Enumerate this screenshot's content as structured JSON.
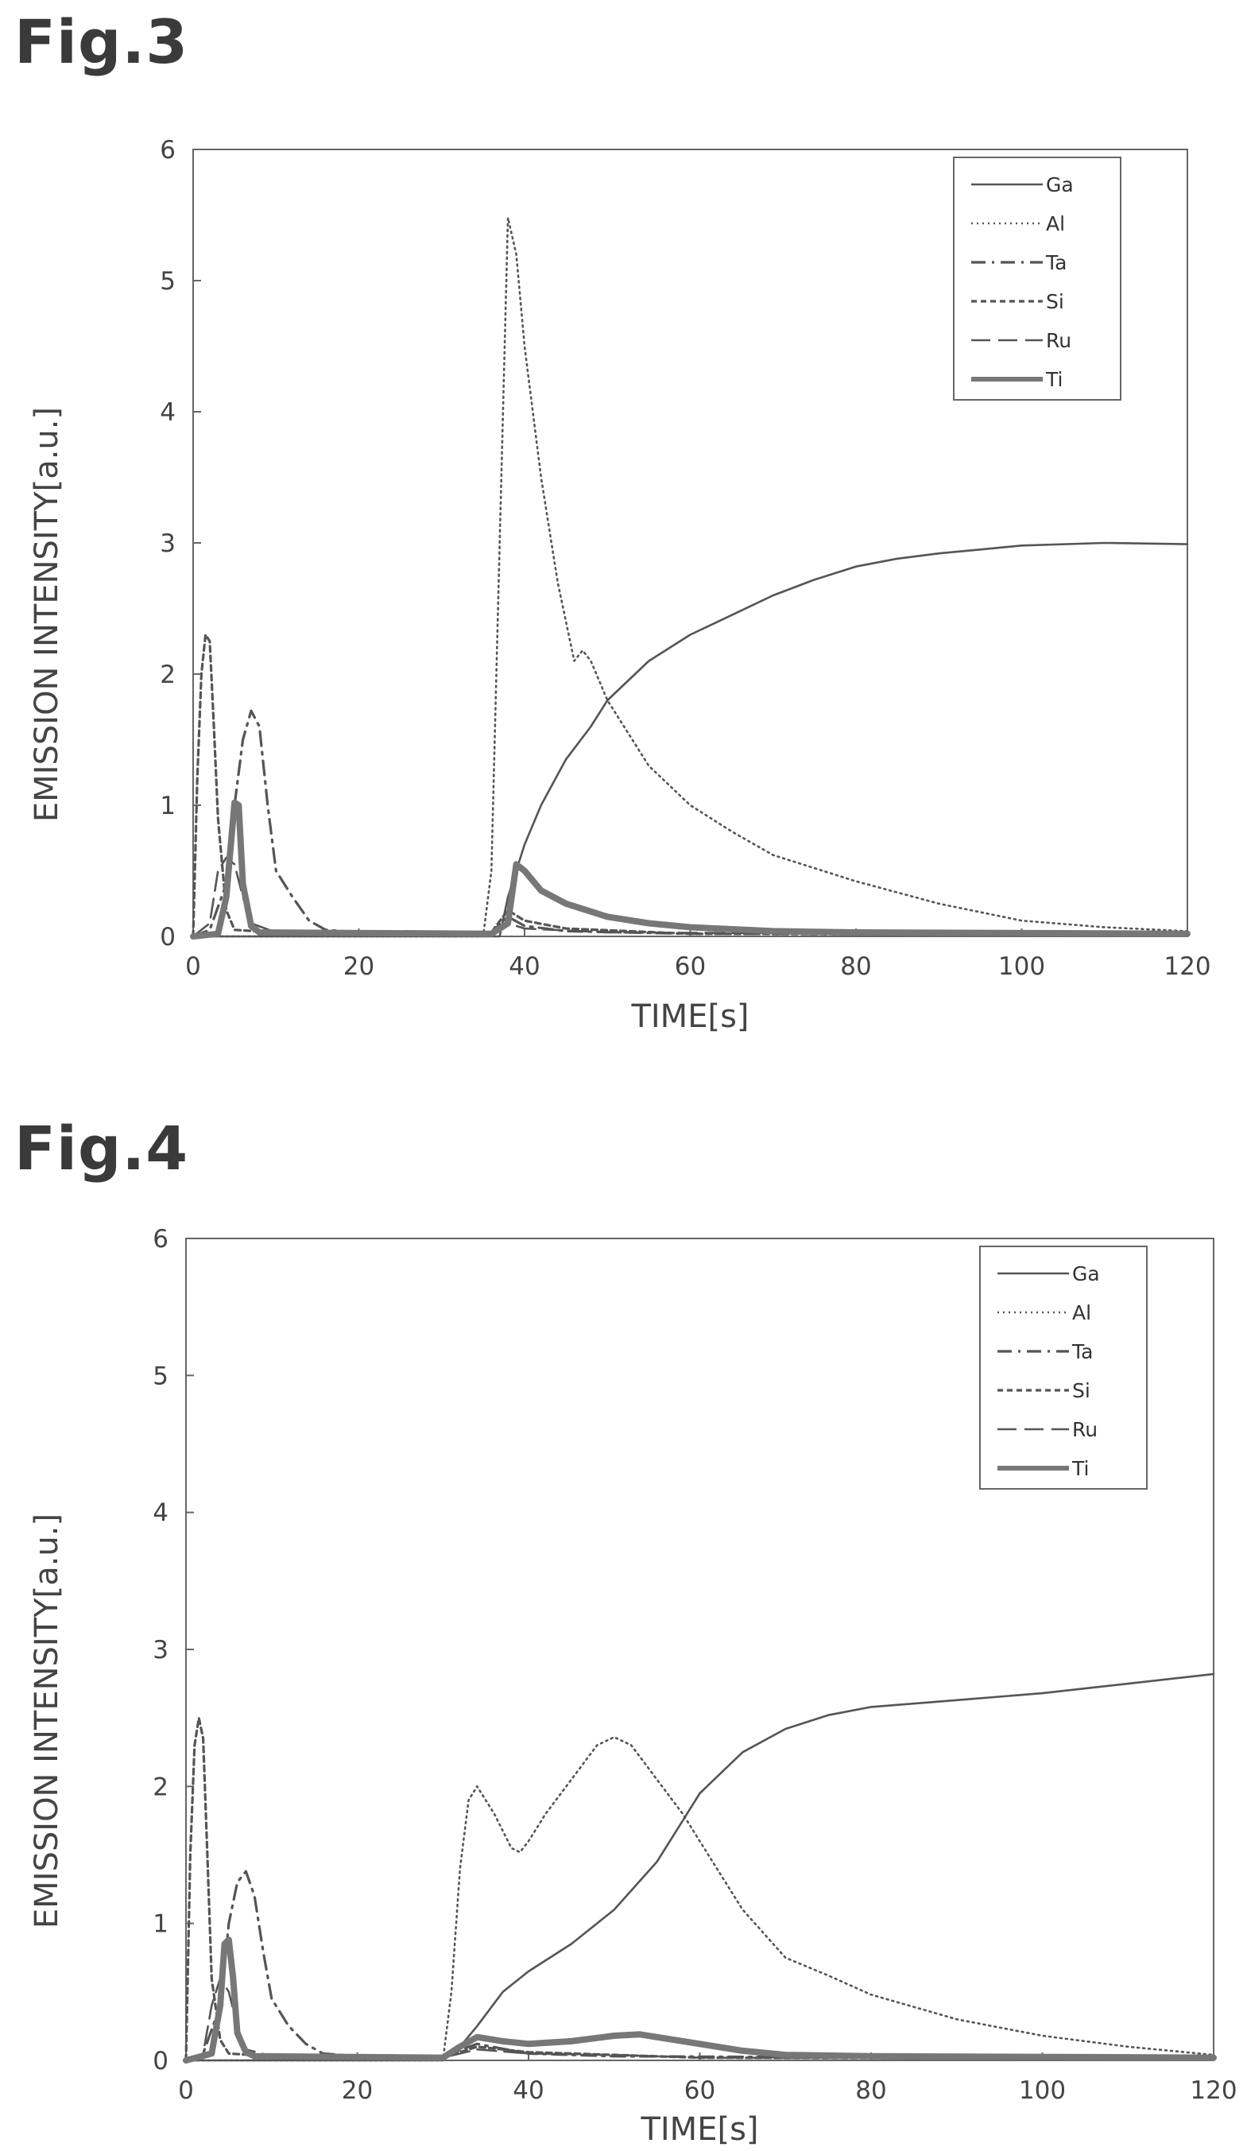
{
  "figures": [
    {
      "label": "Fig.3"
    },
    {
      "label": "Fig.4"
    }
  ],
  "chart_data": [
    {
      "type": "line",
      "title": "",
      "xlabel": "TIME[s]",
      "ylabel": "EMISSION INTENSITY[a.u.]",
      "xlim": [
        0,
        120
      ],
      "ylim": [
        0,
        6
      ],
      "xticks": [
        0,
        20,
        40,
        60,
        80,
        100,
        120
      ],
      "yticks": [
        0,
        1,
        2,
        3,
        4,
        5,
        6
      ],
      "grid": false,
      "legend_position": "top-right",
      "series": [
        {
          "name": "Ga",
          "style": "solid-thin",
          "points": [
            [
              0,
              0
            ],
            [
              37,
              0
            ],
            [
              38,
              0.3
            ],
            [
              40,
              0.7
            ],
            [
              42,
              1.0
            ],
            [
              45,
              1.35
            ],
            [
              48,
              1.6
            ],
            [
              50,
              1.8
            ],
            [
              55,
              2.1
            ],
            [
              60,
              2.3
            ],
            [
              65,
              2.45
            ],
            [
              70,
              2.6
            ],
            [
              75,
              2.72
            ],
            [
              80,
              2.82
            ],
            [
              85,
              2.88
            ],
            [
              90,
              2.92
            ],
            [
              95,
              2.95
            ],
            [
              100,
              2.98
            ],
            [
              110,
              3.0
            ],
            [
              120,
              2.99
            ]
          ]
        },
        {
          "name": "Al",
          "style": "dotted",
          "points": [
            [
              0,
              0
            ],
            [
              35,
              0
            ],
            [
              36,
              0.5
            ],
            [
              37,
              3.0
            ],
            [
              38,
              5.48
            ],
            [
              39,
              5.2
            ],
            [
              40,
              4.5
            ],
            [
              42,
              3.5
            ],
            [
              44,
              2.7
            ],
            [
              46,
              2.1
            ],
            [
              47,
              2.18
            ],
            [
              48,
              2.1
            ],
            [
              50,
              1.8
            ],
            [
              55,
              1.3
            ],
            [
              60,
              1.0
            ],
            [
              65,
              0.8
            ],
            [
              70,
              0.62
            ],
            [
              80,
              0.42
            ],
            [
              90,
              0.25
            ],
            [
              100,
              0.12
            ],
            [
              110,
              0.07
            ],
            [
              120,
              0.04
            ]
          ]
        },
        {
          "name": "Ta",
          "style": "dash-dot",
          "points": [
            [
              0,
              0
            ],
            [
              2,
              0.05
            ],
            [
              4,
              0.4
            ],
            [
              5,
              1.0
            ],
            [
              6,
              1.5
            ],
            [
              7,
              1.72
            ],
            [
              8,
              1.6
            ],
            [
              9,
              1.0
            ],
            [
              10,
              0.5
            ],
            [
              12,
              0.3
            ],
            [
              14,
              0.12
            ],
            [
              16,
              0.05
            ],
            [
              20,
              0.03
            ],
            [
              36,
              0.03
            ],
            [
              38,
              0.15
            ],
            [
              40,
              0.08
            ],
            [
              45,
              0.04
            ],
            [
              60,
              0.02
            ],
            [
              120,
              0.01
            ]
          ]
        },
        {
          "name": "Si",
          "style": "dashed-short",
          "points": [
            [
              0,
              0
            ],
            [
              0.5,
              1.2
            ],
            [
              1,
              2.0
            ],
            [
              1.5,
              2.3
            ],
            [
              2,
              2.25
            ],
            [
              2.5,
              1.6
            ],
            [
              3,
              0.9
            ],
            [
              4,
              0.2
            ],
            [
              5,
              0.05
            ],
            [
              10,
              0.03
            ],
            [
              36,
              0.03
            ],
            [
              38,
              0.2
            ],
            [
              40,
              0.12
            ],
            [
              45,
              0.06
            ],
            [
              60,
              0.02
            ],
            [
              120,
              0.01
            ]
          ]
        },
        {
          "name": "Ru",
          "style": "dashed-long",
          "points": [
            [
              0,
              0
            ],
            [
              2,
              0.1
            ],
            [
              3,
              0.5
            ],
            [
              4,
              0.6
            ],
            [
              5,
              0.55
            ],
            [
              6,
              0.3
            ],
            [
              7,
              0.1
            ],
            [
              10,
              0.03
            ],
            [
              36,
              0.02
            ],
            [
              38,
              0.1
            ],
            [
              40,
              0.06
            ],
            [
              50,
              0.03
            ],
            [
              120,
              0.01
            ]
          ]
        },
        {
          "name": "Ti",
          "style": "solid-thick",
          "points": [
            [
              0,
              0
            ],
            [
              3,
              0.02
            ],
            [
              4,
              0.3
            ],
            [
              5,
              1.02
            ],
            [
              5.5,
              1.0
            ],
            [
              6,
              0.4
            ],
            [
              7,
              0.08
            ],
            [
              8,
              0.03
            ],
            [
              36,
              0.02
            ],
            [
              38,
              0.1
            ],
            [
              39,
              0.55
            ],
            [
              40,
              0.5
            ],
            [
              42,
              0.35
            ],
            [
              45,
              0.25
            ],
            [
              50,
              0.15
            ],
            [
              55,
              0.1
            ],
            [
              60,
              0.07
            ],
            [
              70,
              0.04
            ],
            [
              80,
              0.03
            ],
            [
              120,
              0.02
            ]
          ]
        }
      ]
    },
    {
      "type": "line",
      "title": "",
      "xlabel": "TIME[s]",
      "ylabel": "EMISSION INTENSITY[a.u.]",
      "xlim": [
        0,
        120
      ],
      "ylim": [
        0,
        6
      ],
      "xticks": [
        0,
        20,
        40,
        60,
        80,
        100,
        120
      ],
      "yticks": [
        0,
        1,
        2,
        3,
        4,
        5,
        6
      ],
      "grid": false,
      "legend_position": "top-right",
      "series": [
        {
          "name": "Ga",
          "style": "solid-thin",
          "points": [
            [
              0,
              0
            ],
            [
              30,
              0
            ],
            [
              32,
              0.1
            ],
            [
              34,
              0.25
            ],
            [
              37,
              0.5
            ],
            [
              40,
              0.65
            ],
            [
              45,
              0.85
            ],
            [
              50,
              1.1
            ],
            [
              55,
              1.45
            ],
            [
              58,
              1.75
            ],
            [
              60,
              1.95
            ],
            [
              65,
              2.25
            ],
            [
              70,
              2.42
            ],
            [
              75,
              2.52
            ],
            [
              80,
              2.58
            ],
            [
              90,
              2.63
            ],
            [
              100,
              2.68
            ],
            [
              110,
              2.75
            ],
            [
              120,
              2.82
            ]
          ]
        },
        {
          "name": "Al",
          "style": "dotted",
          "points": [
            [
              0,
              0
            ],
            [
              30,
              0
            ],
            [
              31,
              0.5
            ],
            [
              32,
              1.4
            ],
            [
              33,
              1.9
            ],
            [
              34,
              2.0
            ],
            [
              36,
              1.8
            ],
            [
              38,
              1.55
            ],
            [
              39,
              1.52
            ],
            [
              40,
              1.6
            ],
            [
              42,
              1.8
            ],
            [
              45,
              2.05
            ],
            [
              48,
              2.3
            ],
            [
              50,
              2.36
            ],
            [
              52,
              2.3
            ],
            [
              55,
              2.05
            ],
            [
              58,
              1.8
            ],
            [
              60,
              1.6
            ],
            [
              65,
              1.1
            ],
            [
              70,
              0.75
            ],
            [
              75,
              0.62
            ],
            [
              80,
              0.48
            ],
            [
              90,
              0.3
            ],
            [
              100,
              0.18
            ],
            [
              110,
              0.1
            ],
            [
              120,
              0.04
            ]
          ]
        },
        {
          "name": "Ta",
          "style": "dash-dot",
          "points": [
            [
              0,
              0
            ],
            [
              2,
              0.05
            ],
            [
              4,
              0.4
            ],
            [
              5,
              1.0
            ],
            [
              6,
              1.3
            ],
            [
              7,
              1.38
            ],
            [
              8,
              1.2
            ],
            [
              9,
              0.8
            ],
            [
              10,
              0.45
            ],
            [
              12,
              0.25
            ],
            [
              14,
              0.12
            ],
            [
              16,
              0.05
            ],
            [
              20,
              0.03
            ],
            [
              30,
              0.03
            ],
            [
              34,
              0.12
            ],
            [
              40,
              0.05
            ],
            [
              50,
              0.03
            ],
            [
              120,
              0.01
            ]
          ]
        },
        {
          "name": "Si",
          "style": "dashed-short",
          "points": [
            [
              0,
              0
            ],
            [
              0.5,
              1.5
            ],
            [
              1,
              2.3
            ],
            [
              1.5,
              2.5
            ],
            [
              2,
              2.35
            ],
            [
              2.5,
              1.5
            ],
            [
              3,
              0.6
            ],
            [
              4,
              0.15
            ],
            [
              5,
              0.05
            ],
            [
              10,
              0.03
            ],
            [
              30,
              0.02
            ],
            [
              34,
              0.1
            ],
            [
              40,
              0.06
            ],
            [
              50,
              0.04
            ],
            [
              60,
              0.02
            ],
            [
              120,
              0.01
            ]
          ]
        },
        {
          "name": "Ru",
          "style": "dashed-long",
          "points": [
            [
              0,
              0
            ],
            [
              2,
              0.05
            ],
            [
              3,
              0.4
            ],
            [
              4,
              0.6
            ],
            [
              5,
              0.5
            ],
            [
              6,
              0.25
            ],
            [
              7,
              0.08
            ],
            [
              10,
              0.03
            ],
            [
              30,
              0.02
            ],
            [
              34,
              0.08
            ],
            [
              40,
              0.05
            ],
            [
              50,
              0.04
            ],
            [
              60,
              0.02
            ],
            [
              120,
              0.01
            ]
          ]
        },
        {
          "name": "Ti",
          "style": "solid-thick",
          "points": [
            [
              0,
              0
            ],
            [
              3,
              0.05
            ],
            [
              4,
              0.4
            ],
            [
              4.5,
              0.85
            ],
            [
              5,
              0.88
            ],
            [
              5.5,
              0.6
            ],
            [
              6,
              0.2
            ],
            [
              7,
              0.06
            ],
            [
              8,
              0.03
            ],
            [
              30,
              0.02
            ],
            [
              32,
              0.1
            ],
            [
              34,
              0.17
            ],
            [
              37,
              0.14
            ],
            [
              40,
              0.12
            ],
            [
              45,
              0.14
            ],
            [
              50,
              0.18
            ],
            [
              53,
              0.19
            ],
            [
              56,
              0.16
            ],
            [
              60,
              0.12
            ],
            [
              65,
              0.07
            ],
            [
              70,
              0.04
            ],
            [
              80,
              0.03
            ],
            [
              120,
              0.02
            ]
          ]
        }
      ]
    }
  ]
}
